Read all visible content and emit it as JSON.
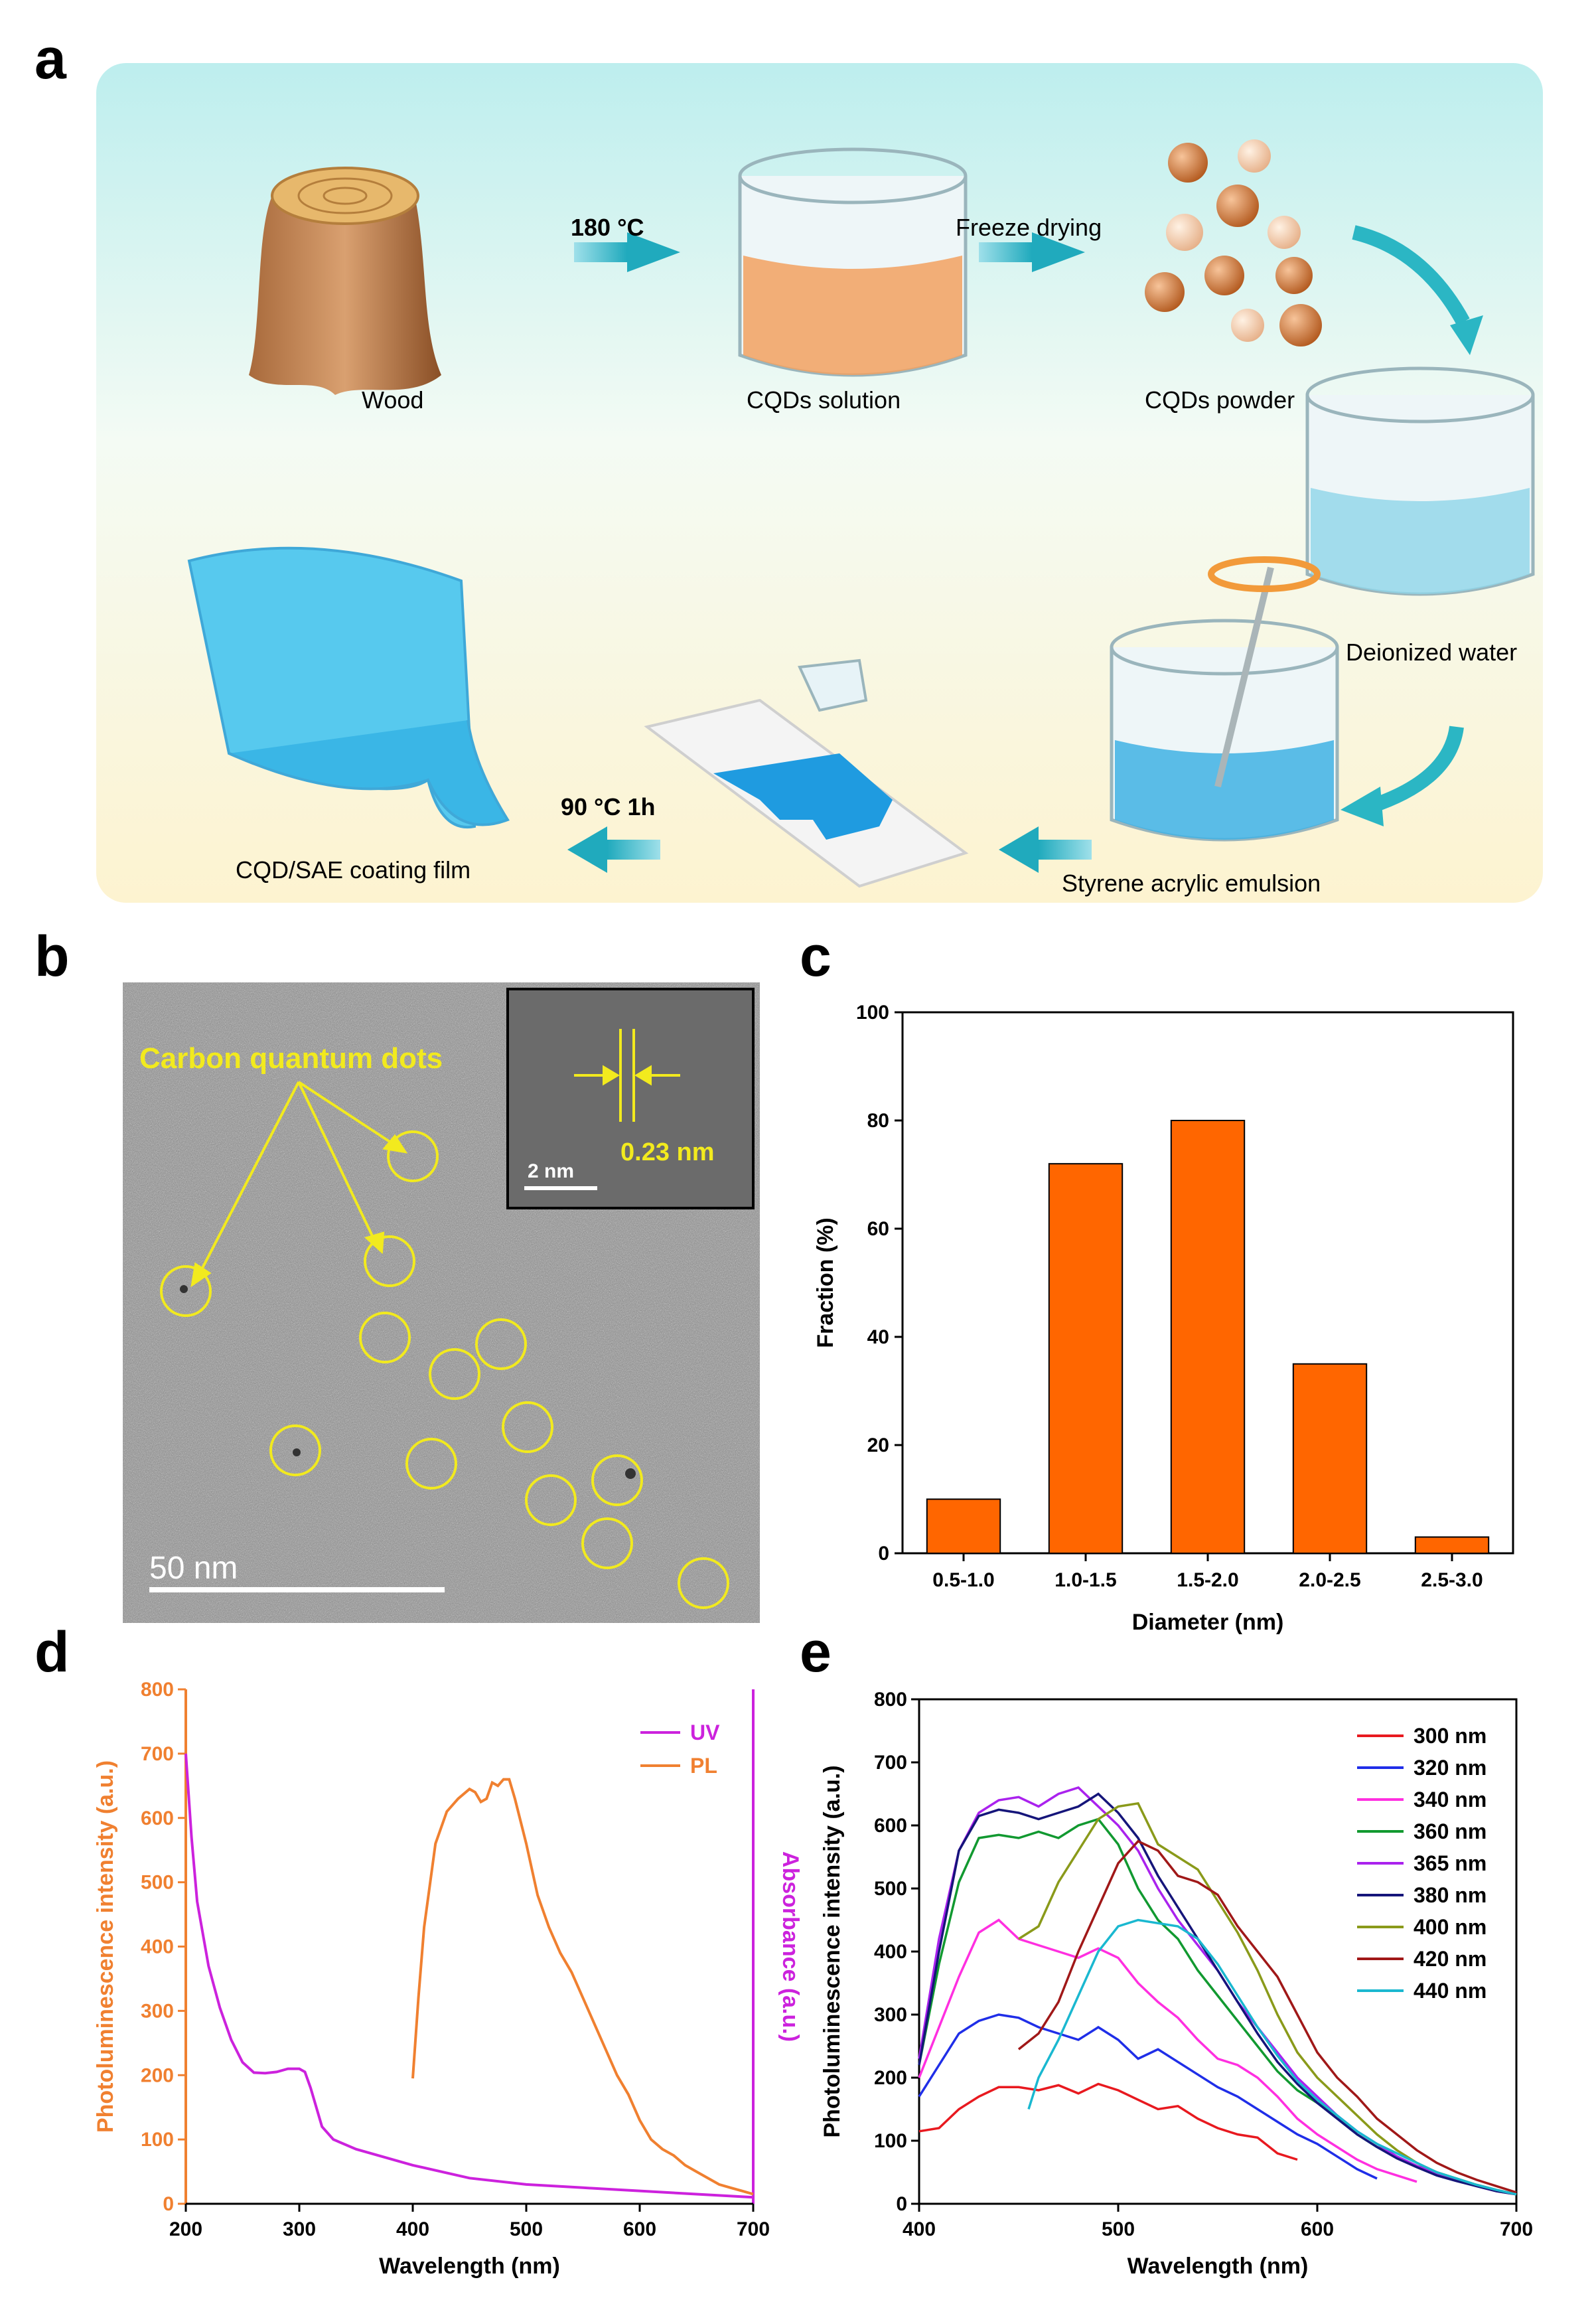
{
  "panels": {
    "a": "a",
    "b": "b",
    "c": "c",
    "d": "d",
    "e": "e"
  },
  "schematic": {
    "steps": {
      "wood": "Wood",
      "cqd_solution": "CQDs solution",
      "cqd_powder": "CQDs powder",
      "deionized_water": "Deionized water",
      "emulsion": "Styrene acrylic emulsion",
      "film": "CQD/SAE coating film"
    },
    "arrows": {
      "heat_temp": "180 °C",
      "freeze": "Freeze drying",
      "cure": "90 °C 1h"
    },
    "colors": {
      "bg_top": "#c8efef",
      "bg_bottom": "#fdf6dc",
      "arrow": "#2bb6c4",
      "film": "#57c9ee"
    }
  },
  "tem": {
    "label": "Carbon quantum dots",
    "inset_spacing": "0.23 nm",
    "inset_scale": "2 nm",
    "scale_bar": "50 nm",
    "annotation_color": "#f2ea1e"
  },
  "chart_data": [
    {
      "id": "c",
      "type": "bar",
      "categories": [
        "0.5-1.0",
        "1.0-1.5",
        "1.5-2.0",
        "2.0-2.5",
        "2.5-3.0"
      ],
      "values": [
        10,
        72,
        80,
        35,
        3
      ],
      "xlabel": "Diameter (nm)",
      "ylabel": "Fraction (%)",
      "ylim": [
        0,
        100
      ],
      "yticks": [
        "0",
        "20",
        "40",
        "60",
        "80",
        "100"
      ],
      "bar_color": "#ff6600"
    },
    {
      "id": "d",
      "type": "line",
      "xlabel": "Wavelength (nm)",
      "ylabel_left": "Photoluminescence intensity (a.u.)",
      "ylabel_right": "Absorbance (a.u.)",
      "xlim": [
        200,
        700
      ],
      "ylim": [
        0,
        800
      ],
      "xticks": [
        "200",
        "300",
        "400",
        "500",
        "600",
        "700"
      ],
      "yticks": [
        "0",
        "100",
        "200",
        "300",
        "400",
        "500",
        "600",
        "700",
        "800"
      ],
      "legend_position": "top-right",
      "series": [
        {
          "name": "UV",
          "color": "#cc22dd",
          "x": [
            200,
            205,
            210,
            220,
            230,
            240,
            250,
            260,
            270,
            280,
            290,
            300,
            305,
            310,
            320,
            330,
            350,
            400,
            450,
            500,
            550,
            600,
            650,
            700
          ],
          "y": [
            700,
            570,
            470,
            370,
            305,
            255,
            220,
            204,
            203,
            205,
            210,
            210,
            205,
            180,
            120,
            100,
            85,
            60,
            40,
            30,
            25,
            20,
            15,
            10
          ]
        },
        {
          "name": "PL",
          "color": "#f08030",
          "x": [
            400,
            405,
            410,
            420,
            430,
            440,
            450,
            455,
            460,
            465,
            470,
            475,
            480,
            485,
            490,
            500,
            510,
            520,
            530,
            540,
            550,
            560,
            570,
            580,
            590,
            600,
            610,
            620,
            630,
            640,
            650,
            660,
            670,
            680,
            690,
            700
          ],
          "y": [
            195,
            320,
            430,
            560,
            610,
            630,
            645,
            640,
            625,
            630,
            655,
            650,
            660,
            660,
            630,
            560,
            480,
            430,
            390,
            360,
            320,
            280,
            240,
            200,
            170,
            130,
            100,
            85,
            75,
            60,
            50,
            40,
            30,
            25,
            20,
            15
          ]
        }
      ]
    },
    {
      "id": "e",
      "type": "line",
      "xlabel": "Wavelength (nm)",
      "ylabel": "Photoluminescence intensity (a.u.)",
      "xlim": [
        400,
        700
      ],
      "ylim": [
        0,
        800
      ],
      "xticks": [
        "400",
        "500",
        "600",
        "700"
      ],
      "yticks": [
        "0",
        "100",
        "200",
        "300",
        "400",
        "500",
        "600",
        "700",
        "800"
      ],
      "legend_position": "top-right",
      "series": [
        {
          "name": "300 nm",
          "color": "#e8191f",
          "x": [
            400,
            410,
            420,
            430,
            440,
            450,
            460,
            470,
            480,
            490,
            500,
            510,
            520,
            530,
            540,
            550,
            560,
            570,
            580,
            590
          ],
          "y": [
            115,
            120,
            150,
            170,
            185,
            185,
            180,
            188,
            175,
            190,
            180,
            165,
            150,
            155,
            135,
            120,
            110,
            105,
            80,
            70
          ]
        },
        {
          "name": "320 nm",
          "color": "#1f2ee8",
          "x": [
            400,
            410,
            420,
            430,
            440,
            450,
            460,
            470,
            480,
            490,
            500,
            510,
            520,
            530,
            540,
            550,
            560,
            570,
            580,
            590,
            600,
            610,
            620,
            630
          ],
          "y": [
            170,
            220,
            270,
            290,
            300,
            295,
            280,
            270,
            260,
            280,
            260,
            230,
            245,
            225,
            205,
            185,
            170,
            150,
            130,
            110,
            95,
            75,
            55,
            40
          ]
        },
        {
          "name": "340 nm",
          "color": "#ff2fe0",
          "x": [
            400,
            410,
            420,
            430,
            440,
            450,
            460,
            470,
            480,
            490,
            500,
            510,
            520,
            530,
            540,
            550,
            560,
            570,
            580,
            590,
            600,
            610,
            620,
            630,
            640,
            650
          ],
          "y": [
            200,
            280,
            360,
            430,
            450,
            420,
            410,
            400,
            390,
            405,
            390,
            350,
            320,
            295,
            260,
            230,
            220,
            200,
            170,
            135,
            110,
            90,
            70,
            55,
            45,
            35
          ]
        },
        {
          "name": "360 nm",
          "color": "#119930",
          "x": [
            400,
            410,
            420,
            430,
            440,
            450,
            460,
            470,
            480,
            490,
            500,
            510,
            520,
            530,
            540,
            550,
            560,
            570,
            580,
            590,
            600,
            610,
            620,
            630,
            640,
            650,
            660,
            670,
            680,
            690,
            700
          ],
          "y": [
            220,
            380,
            510,
            580,
            585,
            580,
            590,
            580,
            600,
            610,
            570,
            500,
            450,
            420,
            370,
            330,
            290,
            250,
            210,
            180,
            160,
            140,
            110,
            90,
            75,
            60,
            50,
            40,
            30,
            22,
            15
          ]
        },
        {
          "name": "365 nm",
          "color": "#aa22ee",
          "x": [
            400,
            410,
            420,
            430,
            440,
            450,
            460,
            470,
            480,
            490,
            500,
            510,
            520,
            530,
            540,
            550,
            560,
            570,
            580,
            590,
            600,
            610,
            620,
            630,
            640,
            650,
            660,
            670,
            680,
            690,
            700
          ],
          "y": [
            230,
            420,
            560,
            620,
            640,
            645,
            630,
            650,
            660,
            630,
            600,
            560,
            500,
            450,
            410,
            370,
            320,
            280,
            240,
            200,
            170,
            140,
            115,
            95,
            75,
            60,
            48,
            38,
            28,
            20,
            15
          ]
        },
        {
          "name": "380 nm",
          "color": "#15157a",
          "x": [
            400,
            410,
            420,
            430,
            440,
            450,
            460,
            470,
            480,
            490,
            500,
            510,
            520,
            530,
            540,
            550,
            560,
            570,
            580,
            590,
            600,
            610,
            620,
            630,
            640,
            650,
            660,
            670,
            680,
            690,
            700
          ],
          "y": [
            220,
            400,
            560,
            615,
            625,
            620,
            610,
            620,
            630,
            650,
            620,
            580,
            520,
            470,
            420,
            370,
            320,
            270,
            225,
            190,
            160,
            135,
            110,
            90,
            72,
            58,
            45,
            36,
            28,
            20,
            15
          ]
        },
        {
          "name": "400 nm",
          "color": "#8a9a1a",
          "x": [
            450,
            460,
            470,
            480,
            490,
            500,
            510,
            520,
            530,
            540,
            550,
            560,
            570,
            580,
            590,
            600,
            610,
            620,
            630,
            640,
            650,
            660,
            670,
            680,
            690,
            700
          ],
          "y": [
            420,
            440,
            510,
            560,
            610,
            630,
            635,
            570,
            550,
            530,
            480,
            430,
            370,
            300,
            240,
            200,
            170,
            140,
            110,
            85,
            65,
            50,
            40,
            30,
            22,
            15
          ]
        },
        {
          "name": "420 nm",
          "color": "#a01818",
          "x": [
            450,
            460,
            470,
            480,
            490,
            500,
            510,
            520,
            530,
            540,
            550,
            560,
            570,
            580,
            590,
            600,
            610,
            620,
            630,
            640,
            650,
            660,
            670,
            680,
            690,
            700
          ],
          "y": [
            245,
            270,
            320,
            400,
            470,
            540,
            575,
            560,
            520,
            510,
            490,
            440,
            400,
            360,
            300,
            240,
            200,
            170,
            135,
            110,
            85,
            65,
            50,
            38,
            28,
            18
          ]
        },
        {
          "name": "440 nm",
          "color": "#1ab8d0",
          "x": [
            455,
            460,
            470,
            480,
            490,
            500,
            510,
            520,
            530,
            540,
            550,
            560,
            570,
            580,
            590,
            600,
            610,
            620,
            630,
            640,
            650,
            660,
            670,
            680,
            690,
            700
          ],
          "y": [
            150,
            200,
            260,
            330,
            400,
            440,
            450,
            445,
            440,
            420,
            380,
            330,
            280,
            235,
            195,
            165,
            140,
            115,
            95,
            80,
            65,
            50,
            40,
            30,
            22,
            15
          ]
        }
      ]
    }
  ]
}
